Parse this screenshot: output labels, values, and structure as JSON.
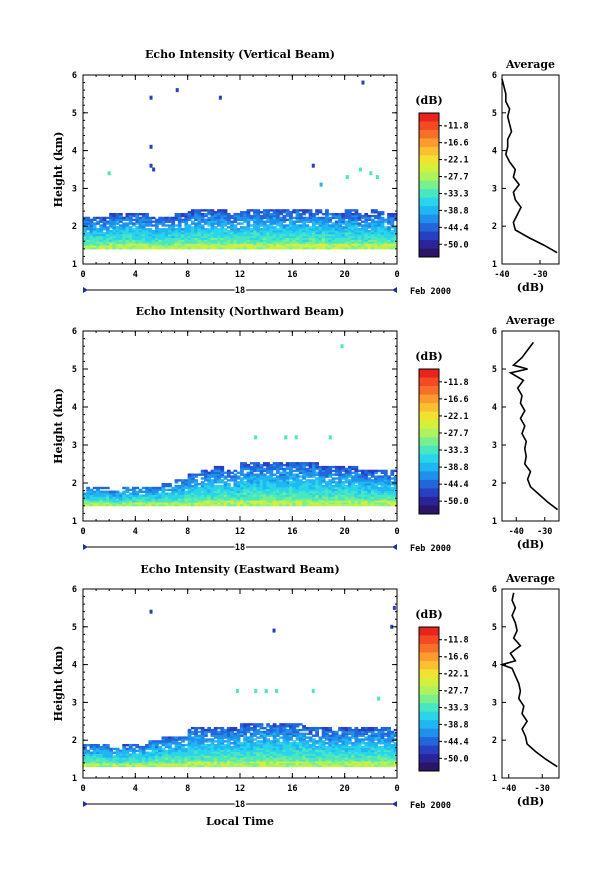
{
  "colorbar": {
    "unit_label": "(dB)",
    "levels": [
      "-11.8",
      "-16.6",
      "-22.1",
      "-27.7",
      "-33.3",
      "-38.8",
      "-44.4",
      "-50.0"
    ],
    "colors": [
      "#e8241f",
      "#f24a23",
      "#f86f2a",
      "#fb9a2f",
      "#fbc032",
      "#f1e231",
      "#d4ef3c",
      "#aef25e",
      "#79ef8f",
      "#49e6c2",
      "#2ad4ea",
      "#20b6f2",
      "#1f90ec",
      "#2366dc",
      "#283fc2",
      "#2b2398",
      "#2a1566"
    ]
  },
  "date_label": "18",
  "month_label": "Feb 2000",
  "xlabel": "Local Time",
  "chart_data": [
    {
      "type": "heatmap",
      "title": "Echo Intensity (Vertical Beam)",
      "xlabel": "",
      "ylabel": "Height (km)",
      "xlim": [
        0,
        24
      ],
      "ylim": [
        1,
        6
      ],
      "xticks": [
        "0",
        "4",
        "8",
        "12",
        "16",
        "20",
        "0"
      ],
      "yticks": [
        "1",
        "2",
        "3",
        "4",
        "5",
        "6"
      ],
      "layer": {
        "base_km": 1.4,
        "top_km": [
          2.2,
          2.2,
          2.3,
          2.3,
          2.3,
          2.2,
          2.2,
          2.3,
          2.4,
          2.4,
          2.4,
          2.3,
          2.4,
          2.4,
          2.4,
          2.4,
          2.4,
          2.4,
          2.4,
          2.3,
          2.4,
          2.3,
          2.4,
          2.3
        ],
        "peak_db": -27.7
      },
      "echoes": [
        {
          "t": 2.0,
          "h": 3.4,
          "db": -33.3
        },
        {
          "t": 5.2,
          "h": 4.1,
          "db": -44.4
        },
        {
          "t": 5.2,
          "h": 3.6,
          "db": -44.4
        },
        {
          "t": 5.4,
          "h": 3.5,
          "db": -44.4
        },
        {
          "t": 5.2,
          "h": 5.4,
          "db": -44.4
        },
        {
          "t": 7.2,
          "h": 5.6,
          "db": -44.4
        },
        {
          "t": 10.5,
          "h": 5.4,
          "db": -44.4
        },
        {
          "t": 17.6,
          "h": 3.6,
          "db": -44.4
        },
        {
          "t": 18.2,
          "h": 3.1,
          "db": -38.8
        },
        {
          "t": 20.2,
          "h": 3.3,
          "db": -33.3
        },
        {
          "t": 21.2,
          "h": 3.5,
          "db": -33.3
        },
        {
          "t": 22.0,
          "h": 3.4,
          "db": -33.3
        },
        {
          "t": 22.5,
          "h": 3.3,
          "db": -33.3
        },
        {
          "t": 21.4,
          "h": 5.8,
          "db": -44.4
        }
      ],
      "average": {
        "title": "Average",
        "xlabel": "(dB)",
        "xlim": [
          -40,
          -25
        ],
        "ylim": [
          1,
          6
        ],
        "xticks": [
          "-40",
          "-30"
        ],
        "yticks": [
          "1",
          "2",
          "3",
          "4",
          "5",
          "6"
        ],
        "height_km": [
          1.3,
          1.5,
          1.7,
          1.9,
          2.1,
          2.3,
          2.5,
          2.7,
          2.9,
          3.1,
          3.3,
          3.5,
          3.7,
          3.9,
          4.1,
          4.3,
          4.5,
          4.7,
          4.9,
          5.1,
          5.3,
          5.5,
          5.7,
          5.9
        ],
        "db": [
          -25.5,
          -29,
          -33,
          -36.5,
          -37,
          -36,
          -35,
          -36.5,
          -37,
          -35.5,
          -37,
          -36.5,
          -38,
          -39,
          -38.5,
          -38.5,
          -37.5,
          -38,
          -38.5,
          -38,
          -39,
          -39,
          -39.5,
          -40
        ]
      }
    },
    {
      "type": "heatmap",
      "title": "Echo Intensity (Northward Beam)",
      "xlabel": "",
      "ylabel": "Height (km)",
      "xlim": [
        0,
        24
      ],
      "ylim": [
        1,
        6
      ],
      "xticks": [
        "0",
        "4",
        "8",
        "12",
        "16",
        "20",
        "0"
      ],
      "yticks": [
        "1",
        "2",
        "3",
        "4",
        "5",
        "6"
      ],
      "layer": {
        "base_km": 1.4,
        "top_km": [
          1.9,
          1.9,
          1.8,
          1.9,
          1.9,
          1.9,
          2.0,
          2.1,
          2.2,
          2.3,
          2.4,
          2.3,
          2.5,
          2.5,
          2.5,
          2.5,
          2.5,
          2.5,
          2.4,
          2.4,
          2.4,
          2.3,
          2.3,
          2.3
        ],
        "peak_db": -27.7
      },
      "echoes": [
        {
          "t": 13.2,
          "h": 3.2,
          "db": -33.3
        },
        {
          "t": 15.5,
          "h": 3.2,
          "db": -33.3
        },
        {
          "t": 16.3,
          "h": 3.2,
          "db": -33.3
        },
        {
          "t": 18.9,
          "h": 3.2,
          "db": -33.3
        },
        {
          "t": 19.8,
          "h": 5.6,
          "db": -33.3
        }
      ],
      "average": {
        "title": "Average",
        "xlabel": "(dB)",
        "xlim": [
          -45,
          -25
        ],
        "ylim": [
          1,
          6
        ],
        "xticks": [
          "-40",
          "-30"
        ],
        "yticks": [
          "1",
          "2",
          "3",
          "4",
          "5",
          "6"
        ],
        "height_km": [
          1.3,
          1.5,
          1.7,
          1.9,
          2.1,
          2.3,
          2.5,
          2.7,
          2.9,
          3.1,
          3.3,
          3.5,
          3.7,
          3.9,
          4.1,
          4.3,
          4.5,
          4.7,
          4.9,
          5.0,
          5.1,
          5.3,
          5.5,
          5.7
        ],
        "db": [
          -25.5,
          -29,
          -32,
          -35,
          -36,
          -35,
          -37,
          -36.5,
          -37,
          -36.5,
          -38,
          -37,
          -38.5,
          -37,
          -38.5,
          -38,
          -39.5,
          -37.5,
          -42,
          -36,
          -41,
          -38,
          -36,
          -34
        ]
      }
    },
    {
      "type": "heatmap",
      "title": "Echo Intensity (Eastward Beam)",
      "xlabel": "Local Time",
      "ylabel": "Height (km)",
      "xlim": [
        0,
        24
      ],
      "ylim": [
        1,
        6
      ],
      "xticks": [
        "0",
        "4",
        "8",
        "12",
        "16",
        "20",
        "0"
      ],
      "yticks": [
        "1",
        "2",
        "3",
        "4",
        "5",
        "6"
      ],
      "layer": {
        "base_km": 1.3,
        "top_km": [
          1.9,
          1.9,
          1.8,
          1.9,
          1.9,
          2.0,
          2.1,
          2.1,
          2.3,
          2.3,
          2.3,
          2.3,
          2.4,
          2.4,
          2.4,
          2.4,
          2.4,
          2.3,
          2.3,
          2.3,
          2.3,
          2.3,
          2.3,
          2.3
        ],
        "peak_db": -27.7
      },
      "echoes": [
        {
          "t": 5.2,
          "h": 5.4,
          "db": -44.4
        },
        {
          "t": 14.6,
          "h": 4.9,
          "db": -44.4
        },
        {
          "t": 11.8,
          "h": 3.3,
          "db": -33.3
        },
        {
          "t": 13.2,
          "h": 3.3,
          "db": -33.3
        },
        {
          "t": 14.0,
          "h": 3.3,
          "db": -33.3
        },
        {
          "t": 14.8,
          "h": 3.3,
          "db": -33.3
        },
        {
          "t": 17.6,
          "h": 3.3,
          "db": -33.3
        },
        {
          "t": 22.6,
          "h": 3.1,
          "db": -33.3
        },
        {
          "t": 23.8,
          "h": 5.5,
          "db": -44.4
        },
        {
          "t": 23.6,
          "h": 5.0,
          "db": -44.4
        }
      ],
      "average": {
        "title": "Average",
        "xlabel": "(dB)",
        "xlim": [
          -42,
          -25
        ],
        "ylim": [
          1,
          6
        ],
        "xticks": [
          "-40",
          "-30"
        ],
        "yticks": [
          "1",
          "2",
          "3",
          "4",
          "5",
          "6"
        ],
        "height_km": [
          1.3,
          1.5,
          1.7,
          1.9,
          2.1,
          2.3,
          2.5,
          2.7,
          2.9,
          3.1,
          3.3,
          3.5,
          3.7,
          3.9,
          4.0,
          4.1,
          4.3,
          4.5,
          4.7,
          4.9,
          5.1,
          5.3,
          5.5,
          5.7,
          5.9
        ],
        "db": [
          -25.5,
          -29,
          -32,
          -34.5,
          -35,
          -36,
          -34.5,
          -36,
          -35.5,
          -37,
          -36.5,
          -37,
          -38,
          -39,
          -42,
          -38,
          -39.5,
          -36.5,
          -38.5,
          -37.5,
          -38,
          -39,
          -38,
          -39,
          -38.5
        ]
      }
    }
  ]
}
